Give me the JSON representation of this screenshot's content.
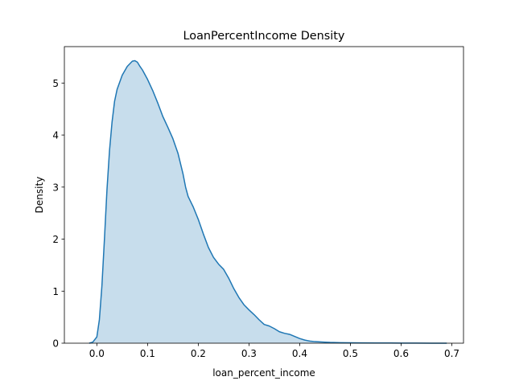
{
  "chart_data": {
    "type": "area",
    "title": "LoanPercentIncome Density",
    "xlabel": "loan_percent_income",
    "ylabel": "Density",
    "xlim": [
      -0.064,
      0.723
    ],
    "ylim": [
      0,
      5.7
    ],
    "xticks": [
      0.0,
      0.1,
      0.2,
      0.3,
      0.4,
      0.5,
      0.6,
      0.7
    ],
    "xtick_labels": [
      "0.0",
      "0.1",
      "0.2",
      "0.3",
      "0.4",
      "0.5",
      "0.6",
      "0.7"
    ],
    "yticks": [
      0,
      1,
      2,
      3,
      4,
      5
    ],
    "ytick_labels": [
      "0",
      "1",
      "2",
      "3",
      "4",
      "5"
    ],
    "grid": false,
    "legend": "none",
    "colors": {
      "line": "#1f77b4",
      "fill": "#1f77b4",
      "fill_opacity": 0.25,
      "axes": "#000000",
      "background": "#ffffff"
    },
    "series": [
      {
        "x": [
          -0.015,
          -0.008,
          0.0,
          0.005,
          0.01,
          0.015,
          0.02,
          0.025,
          0.03,
          0.035,
          0.04,
          0.05,
          0.06,
          0.07,
          0.075,
          0.08,
          0.085,
          0.09,
          0.1,
          0.11,
          0.12,
          0.13,
          0.14,
          0.15,
          0.16,
          0.17,
          0.175,
          0.18,
          0.19,
          0.2,
          0.21,
          0.22,
          0.23,
          0.24,
          0.25,
          0.26,
          0.27,
          0.28,
          0.29,
          0.3,
          0.31,
          0.32,
          0.33,
          0.34,
          0.35,
          0.36,
          0.37,
          0.38,
          0.39,
          0.4,
          0.41,
          0.42,
          0.43,
          0.44,
          0.45,
          0.46,
          0.48,
          0.5,
          0.52,
          0.55,
          0.58,
          0.6,
          0.63,
          0.66,
          0.69
        ],
        "y": [
          0.0,
          0.02,
          0.12,
          0.45,
          1.1,
          2.0,
          2.95,
          3.7,
          4.25,
          4.65,
          4.88,
          5.15,
          5.32,
          5.42,
          5.43,
          5.4,
          5.32,
          5.25,
          5.07,
          4.86,
          4.62,
          4.36,
          4.15,
          3.93,
          3.65,
          3.25,
          3.0,
          2.82,
          2.62,
          2.38,
          2.1,
          1.84,
          1.65,
          1.52,
          1.42,
          1.25,
          1.05,
          0.88,
          0.74,
          0.64,
          0.55,
          0.45,
          0.36,
          0.33,
          0.28,
          0.22,
          0.19,
          0.17,
          0.13,
          0.09,
          0.06,
          0.04,
          0.03,
          0.025,
          0.02,
          0.015,
          0.01,
          0.007,
          0.005,
          0.004,
          0.003,
          0.002,
          0.0015,
          0.001,
          0.0005
        ]
      }
    ]
  }
}
